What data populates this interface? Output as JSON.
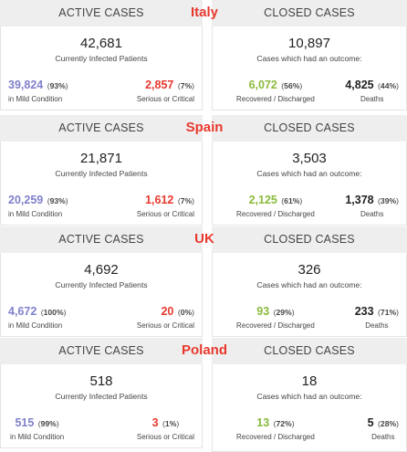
{
  "labels": {
    "active_cases": "ACTIVE CASES",
    "closed_cases": "CLOSED CASES",
    "currently_infected": "Currently Infected Patients",
    "had_outcome": "Cases which had an outcome:",
    "mild": "in Mild Condition",
    "serious": "Serious or Critical",
    "recovered": "Recovered / Discharged",
    "deaths": "Deaths"
  },
  "colors": {
    "country": "#e8382d",
    "mild": "#8080cc",
    "serious": "#e8382d",
    "recovered": "#8aba3c",
    "deaths": "#222222",
    "header_bg": "#eeeeee"
  },
  "countries": [
    {
      "name": "Italy",
      "active": {
        "total": "42,681",
        "mild": "39,824",
        "mild_pct": "93%",
        "serious": "2,857",
        "serious_pct": "7%"
      },
      "closed": {
        "total": "10,897",
        "recovered": "6,072",
        "recovered_pct": "56%",
        "deaths": "4,825",
        "deaths_pct": "44%"
      }
    },
    {
      "name": "Spain",
      "active": {
        "total": "21,871",
        "mild": "20,259",
        "mild_pct": "93%",
        "serious": "1,612",
        "serious_pct": "7%"
      },
      "closed": {
        "total": "3,503",
        "recovered": "2,125",
        "recovered_pct": "61%",
        "deaths": "1,378",
        "deaths_pct": "39%"
      }
    },
    {
      "name": "UK",
      "active": {
        "total": "4,692",
        "mild": "4,672",
        "mild_pct": "100%",
        "serious": "20",
        "serious_pct": "0%"
      },
      "closed": {
        "total": "326",
        "recovered": "93",
        "recovered_pct": "29%",
        "deaths": "233",
        "deaths_pct": "71%"
      }
    },
    {
      "name": "Poland",
      "active": {
        "total": "518",
        "mild": "515",
        "mild_pct": "99%",
        "serious": "3",
        "serious_pct": "1%"
      },
      "closed": {
        "total": "18",
        "recovered": "13",
        "recovered_pct": "72%",
        "deaths": "5",
        "deaths_pct": "28%"
      }
    }
  ]
}
